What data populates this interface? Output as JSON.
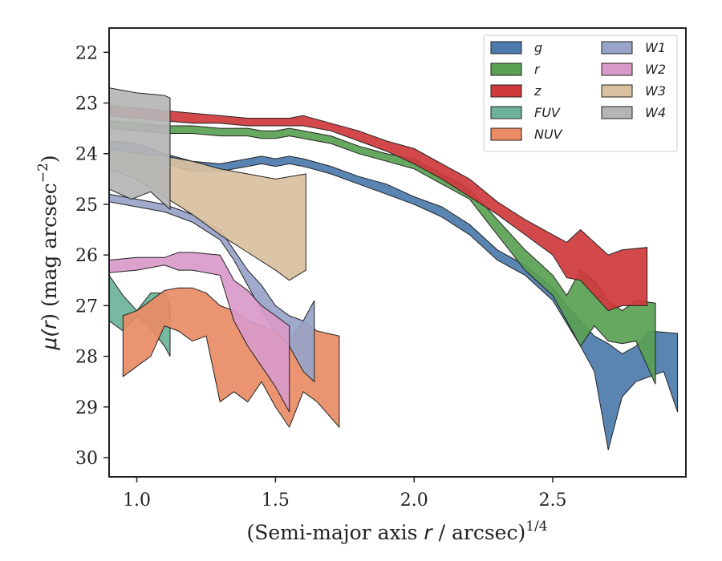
{
  "chart_data": {
    "type": "area",
    "xlabel": {
      "main": "(Semi-major axis ",
      "var": "r",
      "rest": " / arcsec)",
      "sup": "1/4"
    },
    "ylabel": {
      "main": "μ(",
      "var": "r",
      "rest": ") (mag arcsec",
      "sup": "−2",
      "end": ")"
    },
    "xlim": [
      0.9,
      2.98
    ],
    "ylim": [
      30.38,
      21.52
    ],
    "y_inverted": true,
    "xticks": [
      {
        "value": 1.0,
        "label": "1.0"
      },
      {
        "value": 1.5,
        "label": "1.5"
      },
      {
        "value": 2.0,
        "label": "2.0"
      },
      {
        "value": 2.5,
        "label": "2.5"
      }
    ],
    "yticks": [
      {
        "value": 22,
        "label": "22"
      },
      {
        "value": 23,
        "label": "23"
      },
      {
        "value": 24,
        "label": "24"
      },
      {
        "value": 25,
        "label": "25"
      },
      {
        "value": 26,
        "label": "26"
      },
      {
        "value": 27,
        "label": "27"
      },
      {
        "value": 28,
        "label": "28"
      },
      {
        "value": 29,
        "label": "29"
      },
      {
        "value": 30,
        "label": "30"
      }
    ],
    "legend": {
      "placement": "upper-right",
      "columns": 2
    },
    "series": [
      {
        "name": "g",
        "color": "#4c7bab",
        "upper": [
          [
            0.9,
            23.75
          ],
          [
            1.0,
            23.8
          ],
          [
            1.1,
            24.0
          ],
          [
            1.2,
            24.15
          ],
          [
            1.3,
            24.2
          ],
          [
            1.4,
            24.1
          ],
          [
            1.45,
            24.05
          ],
          [
            1.5,
            24.1
          ],
          [
            1.55,
            24.05
          ],
          [
            1.6,
            24.1
          ],
          [
            1.7,
            24.25
          ],
          [
            1.8,
            24.45
          ],
          [
            1.9,
            24.6
          ],
          [
            2.0,
            24.85
          ],
          [
            2.1,
            25.05
          ],
          [
            2.2,
            25.4
          ],
          [
            2.3,
            25.9
          ],
          [
            2.4,
            26.2
          ],
          [
            2.5,
            26.65
          ],
          [
            2.55,
            27.0
          ],
          [
            2.6,
            27.3
          ],
          [
            2.65,
            27.6
          ],
          [
            2.7,
            27.75
          ],
          [
            2.75,
            27.95
          ],
          [
            2.8,
            27.8
          ],
          [
            2.85,
            27.5
          ],
          [
            2.95,
            27.55
          ]
        ],
        "lower": [
          [
            0.9,
            23.95
          ],
          [
            1.0,
            24.0
          ],
          [
            1.1,
            24.2
          ],
          [
            1.2,
            24.35
          ],
          [
            1.3,
            24.35
          ],
          [
            1.4,
            24.25
          ],
          [
            1.45,
            24.2
          ],
          [
            1.5,
            24.25
          ],
          [
            1.55,
            24.2
          ],
          [
            1.6,
            24.25
          ],
          [
            1.7,
            24.4
          ],
          [
            1.8,
            24.6
          ],
          [
            1.9,
            24.8
          ],
          [
            2.0,
            25.0
          ],
          [
            2.1,
            25.25
          ],
          [
            2.2,
            25.6
          ],
          [
            2.3,
            26.1
          ],
          [
            2.4,
            26.4
          ],
          [
            2.5,
            26.9
          ],
          [
            2.55,
            27.35
          ],
          [
            2.6,
            27.8
          ],
          [
            2.65,
            28.3
          ],
          [
            2.7,
            29.85
          ],
          [
            2.75,
            28.8
          ],
          [
            2.8,
            28.5
          ],
          [
            2.9,
            28.3
          ],
          [
            2.95,
            29.1
          ]
        ]
      },
      {
        "name": "r",
        "color": "#5aa154",
        "upper": [
          [
            0.9,
            23.35
          ],
          [
            1.0,
            23.4
          ],
          [
            1.1,
            23.45
          ],
          [
            1.2,
            23.45
          ],
          [
            1.3,
            23.5
          ],
          [
            1.4,
            23.5
          ],
          [
            1.45,
            23.55
          ],
          [
            1.5,
            23.55
          ],
          [
            1.55,
            23.5
          ],
          [
            1.6,
            23.55
          ],
          [
            1.7,
            23.65
          ],
          [
            1.8,
            23.85
          ],
          [
            1.9,
            24.0
          ],
          [
            2.0,
            24.1
          ],
          [
            2.1,
            24.4
          ],
          [
            2.2,
            24.7
          ],
          [
            2.3,
            25.3
          ],
          [
            2.4,
            25.9
          ],
          [
            2.5,
            26.4
          ],
          [
            2.55,
            26.8
          ],
          [
            2.6,
            26.3
          ],
          [
            2.65,
            26.5
          ],
          [
            2.7,
            26.9
          ],
          [
            2.75,
            27.1
          ],
          [
            2.8,
            26.9
          ],
          [
            2.87,
            26.95
          ]
        ],
        "lower": [
          [
            0.9,
            23.5
          ],
          [
            1.0,
            23.55
          ],
          [
            1.1,
            23.6
          ],
          [
            1.2,
            23.6
          ],
          [
            1.3,
            23.65
          ],
          [
            1.4,
            23.65
          ],
          [
            1.45,
            23.7
          ],
          [
            1.5,
            23.7
          ],
          [
            1.55,
            23.65
          ],
          [
            1.6,
            23.7
          ],
          [
            1.7,
            23.8
          ],
          [
            1.8,
            24.0
          ],
          [
            1.9,
            24.15
          ],
          [
            2.0,
            24.3
          ],
          [
            2.1,
            24.6
          ],
          [
            2.2,
            24.9
          ],
          [
            2.3,
            25.6
          ],
          [
            2.4,
            26.3
          ],
          [
            2.5,
            26.8
          ],
          [
            2.55,
            27.3
          ],
          [
            2.6,
            27.8
          ],
          [
            2.65,
            27.4
          ],
          [
            2.7,
            27.7
          ],
          [
            2.75,
            27.75
          ],
          [
            2.8,
            27.7
          ],
          [
            2.87,
            28.55
          ]
        ]
      },
      {
        "name": "z",
        "color": "#cf3a3c",
        "upper": [
          [
            0.9,
            23.05
          ],
          [
            1.0,
            23.1
          ],
          [
            1.1,
            23.15
          ],
          [
            1.2,
            23.2
          ],
          [
            1.3,
            23.25
          ],
          [
            1.4,
            23.3
          ],
          [
            1.45,
            23.3
          ],
          [
            1.5,
            23.3
          ],
          [
            1.55,
            23.3
          ],
          [
            1.6,
            23.25
          ],
          [
            1.7,
            23.4
          ],
          [
            1.8,
            23.55
          ],
          [
            1.9,
            23.75
          ],
          [
            2.0,
            23.9
          ],
          [
            2.1,
            24.2
          ],
          [
            2.2,
            24.5
          ],
          [
            2.3,
            24.95
          ],
          [
            2.4,
            25.3
          ],
          [
            2.5,
            25.6
          ],
          [
            2.55,
            25.75
          ],
          [
            2.6,
            25.5
          ],
          [
            2.7,
            26.0
          ],
          [
            2.75,
            25.9
          ],
          [
            2.84,
            25.85
          ]
        ],
        "lower": [
          [
            0.9,
            23.25
          ],
          [
            1.0,
            23.3
          ],
          [
            1.1,
            23.35
          ],
          [
            1.2,
            23.4
          ],
          [
            1.3,
            23.4
          ],
          [
            1.4,
            23.45
          ],
          [
            1.45,
            23.45
          ],
          [
            1.5,
            23.45
          ],
          [
            1.55,
            23.45
          ],
          [
            1.6,
            23.45
          ],
          [
            1.7,
            23.55
          ],
          [
            1.8,
            23.75
          ],
          [
            1.9,
            23.95
          ],
          [
            2.0,
            24.2
          ],
          [
            2.1,
            24.5
          ],
          [
            2.2,
            24.85
          ],
          [
            2.3,
            25.2
          ],
          [
            2.4,
            25.6
          ],
          [
            2.5,
            26.0
          ],
          [
            2.55,
            26.45
          ],
          [
            2.6,
            26.5
          ],
          [
            2.7,
            27.1
          ],
          [
            2.75,
            27.0
          ],
          [
            2.84,
            27.0
          ]
        ]
      },
      {
        "name": "FUV",
        "color": "#6db39a",
        "upper": [
          [
            0.9,
            26.4
          ],
          [
            0.95,
            26.8
          ],
          [
            1.0,
            27.1
          ],
          [
            1.05,
            26.75
          ],
          [
            1.1,
            26.75
          ],
          [
            1.12,
            27.0
          ]
        ],
        "lower": [
          [
            0.9,
            27.3
          ],
          [
            0.95,
            27.5
          ],
          [
            1.0,
            27.2
          ],
          [
            1.05,
            27.45
          ],
          [
            1.1,
            27.8
          ],
          [
            1.12,
            28.0
          ]
        ]
      },
      {
        "name": "NUV",
        "color": "#e98b65",
        "upper": [
          [
            0.95,
            27.2
          ],
          [
            1.0,
            27.1
          ],
          [
            1.05,
            26.9
          ],
          [
            1.1,
            26.7
          ],
          [
            1.15,
            26.65
          ],
          [
            1.2,
            26.65
          ],
          [
            1.25,
            26.75
          ],
          [
            1.3,
            27.0
          ],
          [
            1.35,
            27.1
          ],
          [
            1.4,
            27.3
          ],
          [
            1.45,
            27.4
          ],
          [
            1.5,
            27.5
          ],
          [
            1.55,
            27.7
          ],
          [
            1.6,
            27.3
          ],
          [
            1.65,
            27.5
          ],
          [
            1.73,
            27.6
          ]
        ],
        "lower": [
          [
            0.95,
            28.4
          ],
          [
            1.0,
            28.2
          ],
          [
            1.05,
            28.0
          ],
          [
            1.1,
            27.4
          ],
          [
            1.15,
            27.5
          ],
          [
            1.2,
            27.7
          ],
          [
            1.25,
            27.6
          ],
          [
            1.3,
            28.9
          ],
          [
            1.35,
            28.7
          ],
          [
            1.4,
            28.9
          ],
          [
            1.45,
            28.5
          ],
          [
            1.5,
            29.0
          ],
          [
            1.55,
            29.4
          ],
          [
            1.6,
            28.7
          ],
          [
            1.65,
            28.9
          ],
          [
            1.73,
            29.4
          ]
        ]
      },
      {
        "name": "W1",
        "color": "#97a3c8",
        "upper": [
          [
            0.9,
            24.8
          ],
          [
            1.0,
            24.9
          ],
          [
            1.1,
            25.0
          ],
          [
            1.2,
            25.2
          ],
          [
            1.3,
            25.5
          ],
          [
            1.35,
            25.9
          ],
          [
            1.4,
            26.3
          ],
          [
            1.45,
            26.6
          ],
          [
            1.5,
            27.0
          ],
          [
            1.55,
            27.2
          ],
          [
            1.6,
            27.3
          ],
          [
            1.64,
            26.9
          ]
        ],
        "lower": [
          [
            0.9,
            24.95
          ],
          [
            1.0,
            25.05
          ],
          [
            1.1,
            25.15
          ],
          [
            1.2,
            25.35
          ],
          [
            1.3,
            25.7
          ],
          [
            1.35,
            26.1
          ],
          [
            1.4,
            26.6
          ],
          [
            1.45,
            27.1
          ],
          [
            1.5,
            27.5
          ],
          [
            1.55,
            27.8
          ],
          [
            1.6,
            28.3
          ],
          [
            1.64,
            28.5
          ]
        ]
      },
      {
        "name": "W2",
        "color": "#d99ac9",
        "upper": [
          [
            0.9,
            26.1
          ],
          [
            1.0,
            26.05
          ],
          [
            1.1,
            26.05
          ],
          [
            1.15,
            25.95
          ],
          [
            1.2,
            25.95
          ],
          [
            1.3,
            26.0
          ],
          [
            1.35,
            26.5
          ],
          [
            1.4,
            26.7
          ],
          [
            1.45,
            27.0
          ],
          [
            1.5,
            27.2
          ],
          [
            1.55,
            27.4
          ]
        ],
        "lower": [
          [
            0.9,
            26.35
          ],
          [
            1.0,
            26.3
          ],
          [
            1.1,
            26.2
          ],
          [
            1.15,
            26.3
          ],
          [
            1.2,
            26.3
          ],
          [
            1.3,
            26.4
          ],
          [
            1.35,
            27.3
          ],
          [
            1.4,
            27.8
          ],
          [
            1.45,
            28.2
          ],
          [
            1.5,
            28.6
          ],
          [
            1.55,
            29.1
          ]
        ]
      },
      {
        "name": "W3",
        "color": "#d9c09e",
        "upper": [
          [
            0.9,
            23.9
          ],
          [
            1.0,
            24.0
          ],
          [
            1.1,
            24.05
          ],
          [
            1.2,
            24.15
          ],
          [
            1.3,
            24.3
          ],
          [
            1.4,
            24.4
          ],
          [
            1.5,
            24.5
          ],
          [
            1.61,
            24.4
          ]
        ],
        "lower": [
          [
            0.9,
            24.3
          ],
          [
            1.0,
            24.5
          ],
          [
            1.1,
            24.85
          ],
          [
            1.2,
            25.2
          ],
          [
            1.3,
            25.6
          ],
          [
            1.4,
            25.95
          ],
          [
            1.5,
            26.3
          ],
          [
            1.55,
            26.5
          ],
          [
            1.61,
            26.3
          ]
        ]
      },
      {
        "name": "W4",
        "color": "#b5b5b5",
        "upper": [
          [
            0.9,
            22.7
          ],
          [
            1.0,
            22.8
          ],
          [
            1.1,
            22.85
          ],
          [
            1.12,
            22.9
          ]
        ],
        "lower": [
          [
            0.9,
            24.7
          ],
          [
            0.98,
            24.9
          ],
          [
            1.05,
            24.75
          ],
          [
            1.1,
            25.0
          ],
          [
            1.12,
            25.1
          ]
        ]
      }
    ]
  }
}
